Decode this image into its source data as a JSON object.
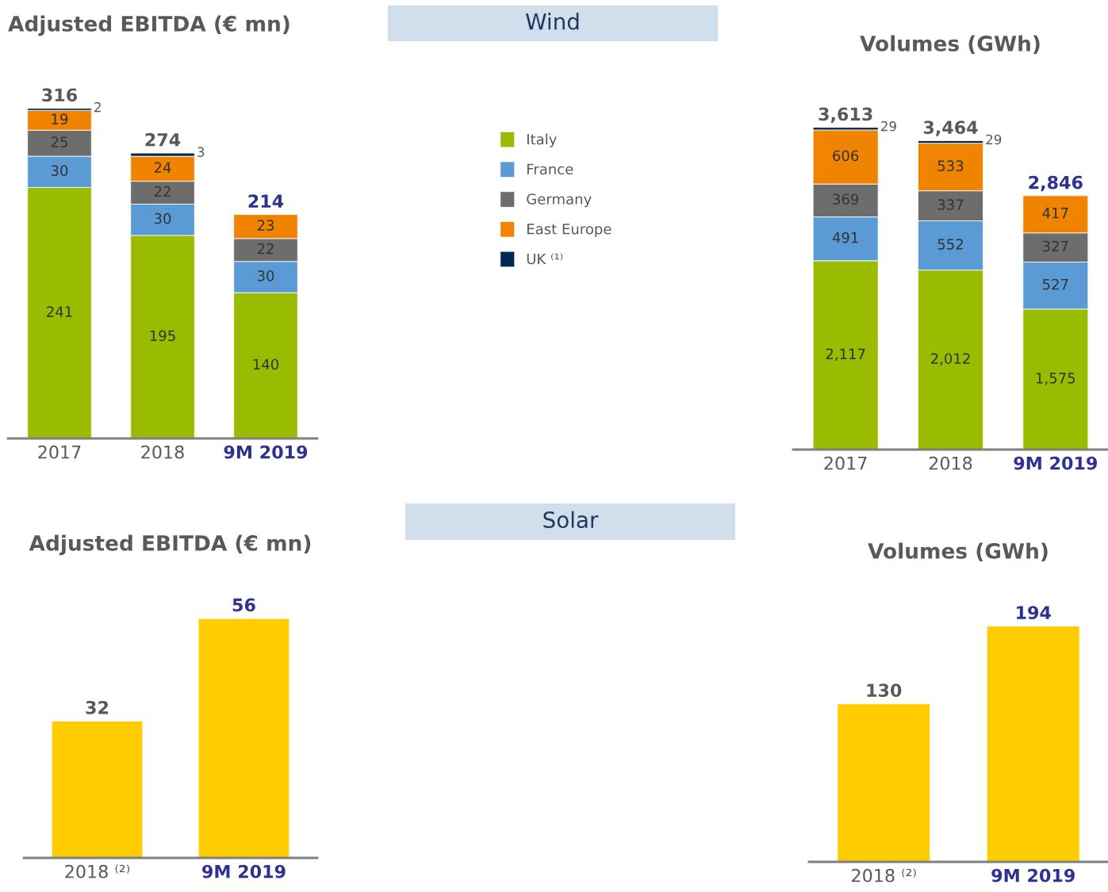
{
  "chart_data": [
    {
      "type": "bar",
      "title": "Adjusted EBITDA (€ mn)",
      "categories": [
        "2017",
        "2018",
        "9M 2019"
      ],
      "stacked": true,
      "data_labels": true,
      "legend": "right",
      "series": [
        {
          "name": "Italy",
          "color": "#99bb00",
          "values": [
            241,
            195,
            140
          ]
        },
        {
          "name": "France",
          "color": "#5b9bd5",
          "values": [
            30,
            30,
            30
          ]
        },
        {
          "name": "Germany",
          "color": "#6d6d6d",
          "values": [
            25,
            22,
            22
          ]
        },
        {
          "name": "East Europe",
          "color": "#f08400",
          "values": [
            19,
            24,
            23
          ]
        },
        {
          "name": "UK ⁽¹⁾",
          "color": "#002855",
          "values": [
            2,
            3,
            null
          ]
        }
      ],
      "totals": [
        "316",
        "274",
        "214"
      ]
    },
    {
      "type": "other",
      "title": "Wind"
    },
    {
      "type": "bar",
      "title": "Volumes (GWh)",
      "categories": [
        "2017",
        "2018",
        "9M 2019"
      ],
      "stacked": true,
      "data_labels": true,
      "series": [
        {
          "color": "#99bb00",
          "values": [
            2117,
            2012,
            1575
          ],
          "value_labels": [
            "2,117",
            "2,012",
            "1,575"
          ]
        },
        {
          "color": "#5b9bd5",
          "values": [
            491,
            552,
            527
          ]
        },
        {
          "color": "#6d6d6d",
          "values": [
            369,
            337,
            327
          ]
        },
        {
          "color": "#f08400",
          "values": [
            606,
            533,
            417
          ]
        },
        {
          "color": "#002855",
          "values": [
            29,
            29,
            null
          ]
        }
      ],
      "totals": [
        "3,613",
        "3,464",
        "2,846"
      ]
    },
    {
      "type": "other",
      "title": "Solar"
    },
    {
      "type": "bar",
      "title": "Adjusted EBITDA (€ mn)",
      "categories": [
        "2018 ⁽²⁾",
        "9M 2019"
      ],
      "values": [
        32,
        56
      ],
      "color": "#ffcc00",
      "data_labels": true
    },
    {
      "type": "bar",
      "title": "Volumes (GWh)",
      "categories": [
        "2018 ⁽²⁾",
        "9M 2019"
      ],
      "values": [
        130,
        194
      ],
      "color": "#ffcc00",
      "data_labels": true
    }
  ]
}
